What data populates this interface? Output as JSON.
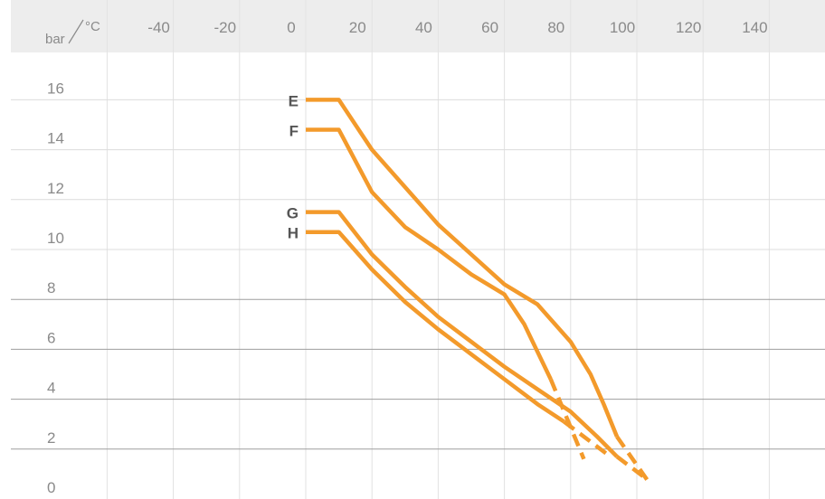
{
  "chart_data": {
    "type": "line",
    "title": "",
    "xlabel": "°C",
    "ylabel": "bar",
    "x_ticks": [
      "-40",
      "-20",
      "0",
      "20",
      "40",
      "60",
      "80",
      "100",
      "120",
      "140"
    ],
    "y_ticks": [
      "16",
      "14",
      "12",
      "10",
      "8",
      "6",
      "4",
      "2",
      "0"
    ],
    "xlim": [
      -60,
      160
    ],
    "ylim": [
      0,
      16
    ],
    "grid": true,
    "series": [
      {
        "name": "E",
        "color": "#F39A2B",
        "points": [
          [
            0,
            16
          ],
          [
            10,
            16
          ],
          [
            20,
            14
          ],
          [
            30,
            12.5
          ],
          [
            40,
            11
          ],
          [
            50,
            9.8
          ],
          [
            60,
            8.6
          ],
          [
            70,
            7.8
          ],
          [
            80,
            6.3
          ],
          [
            86,
            5
          ],
          [
            90,
            3.8
          ],
          [
            94,
            2.5
          ]
        ],
        "dashed_points": [
          [
            94,
            2.5
          ],
          [
            104,
            0.6
          ]
        ]
      },
      {
        "name": "F",
        "color": "#F39A2B",
        "points": [
          [
            0,
            14.8
          ],
          [
            10,
            14.8
          ],
          [
            20,
            12.3
          ],
          [
            30,
            10.9
          ],
          [
            40,
            10
          ],
          [
            50,
            9
          ],
          [
            60,
            8.2
          ],
          [
            66,
            7
          ],
          [
            70,
            5.9
          ],
          [
            74,
            4.8
          ]
        ],
        "dashed_points": [
          [
            74,
            4.8
          ],
          [
            84,
            1.6
          ]
        ]
      },
      {
        "name": "G",
        "color": "#F39A2B",
        "points": [
          [
            0,
            11.5
          ],
          [
            10,
            11.5
          ],
          [
            20,
            9.8
          ],
          [
            30,
            8.5
          ],
          [
            40,
            7.3
          ],
          [
            50,
            6.3
          ],
          [
            60,
            5.3
          ],
          [
            70,
            4.4
          ],
          [
            80,
            3.5
          ],
          [
            88,
            2.5
          ],
          [
            94,
            1.7
          ]
        ],
        "dashed_points": [
          [
            94,
            1.7
          ],
          [
            102,
            0.9
          ]
        ]
      },
      {
        "name": "H",
        "color": "#F39A2B",
        "points": [
          [
            0,
            10.7
          ],
          [
            10,
            10.7
          ],
          [
            20,
            9.2
          ],
          [
            30,
            7.9
          ],
          [
            40,
            6.8
          ],
          [
            50,
            5.8
          ],
          [
            60,
            4.8
          ],
          [
            70,
            3.8
          ],
          [
            78,
            3.1
          ]
        ],
        "dashed_points": [
          [
            78,
            3.1
          ],
          [
            92,
            1.7
          ]
        ]
      }
    ]
  }
}
